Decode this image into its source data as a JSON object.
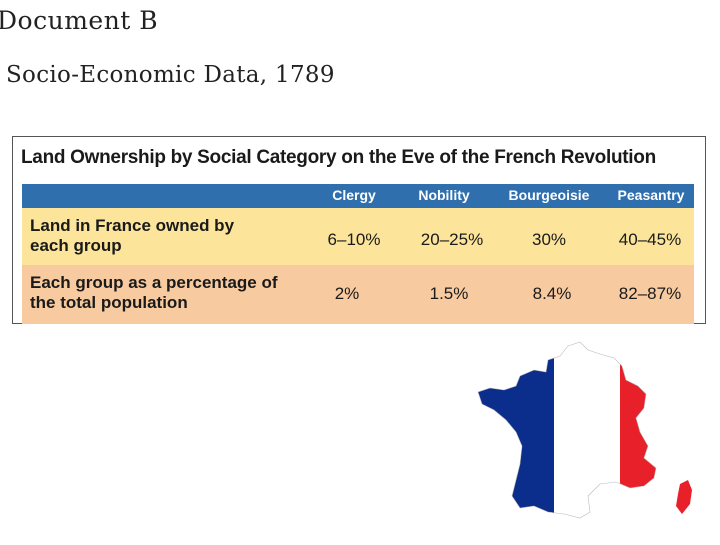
{
  "document": {
    "title": "Document B",
    "subtitle": "Socio-Economic Data, 1789"
  },
  "table": {
    "title": "Land Ownership by Social Category on the Eve of the French Revolution",
    "columns": [
      "Clergy",
      "Nobility",
      "Bourgeoisie",
      "Peasantry"
    ],
    "rows": [
      {
        "label_line1": "Land in France owned by",
        "label_line2": "each group",
        "values": [
          "6–10%",
          "20–25%",
          "30%",
          "40–45%"
        ]
      },
      {
        "label_line1": "Each group as a percentage of",
        "label_line2": "the total population",
        "values": [
          "2%",
          "1.5%",
          "8.4%",
          "82–87%"
        ]
      }
    ],
    "colors": {
      "header": "#2f6fae",
      "row1": "#fce59a",
      "row2": "#f7caa0"
    }
  },
  "map": {
    "icon": "france-flag-map-icon",
    "colors": {
      "blue": "#0b2d8c",
      "white": "#ffffff",
      "red": "#e8202a"
    }
  }
}
